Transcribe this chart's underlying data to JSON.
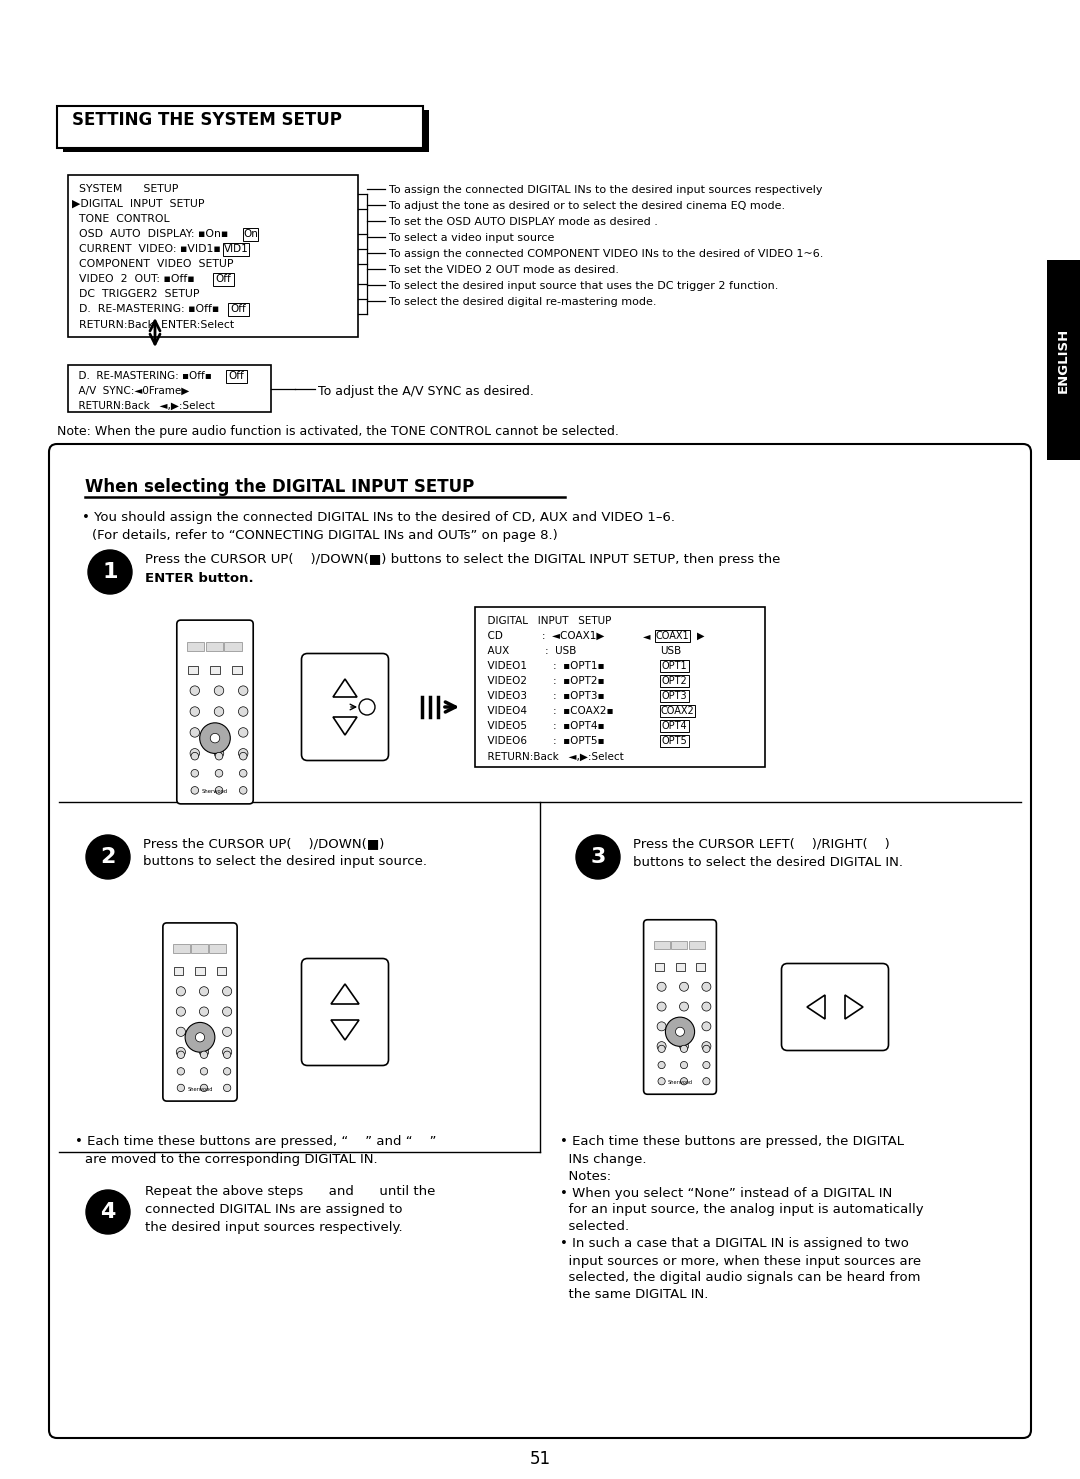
{
  "bg_color": "#ffffff",
  "page_number": "51",
  "title": "SETTING THE SYSTEM SETUP",
  "english_tab": "ENGLISH",
  "note_text": "Note: When the pure audio function is activated, the TONE CONTROL cannot be selected.",
  "section_title": "When selecting the DIGITAL INPUT SETUP",
  "sub_annotation": "To adjust the A/V SYNC as desired.",
  "menu_annotations": [
    "To assign the connected DIGITAL INs to the desired input sources respectively",
    "To adjust the tone as desired or to select the desired cinema EQ mode.",
    "To set the OSD AUTO DISPLAY mode as desired .",
    "To select a video input source",
    "To assign the connected COMPONENT VIDEO INs to the desired of VIDEO 1~6.",
    "To set the VIDEO 2 OUT mode as desired.",
    "To select the desired input source that uses the DC trigger 2 function.",
    "To select the desired digital re-mastering mode."
  ]
}
